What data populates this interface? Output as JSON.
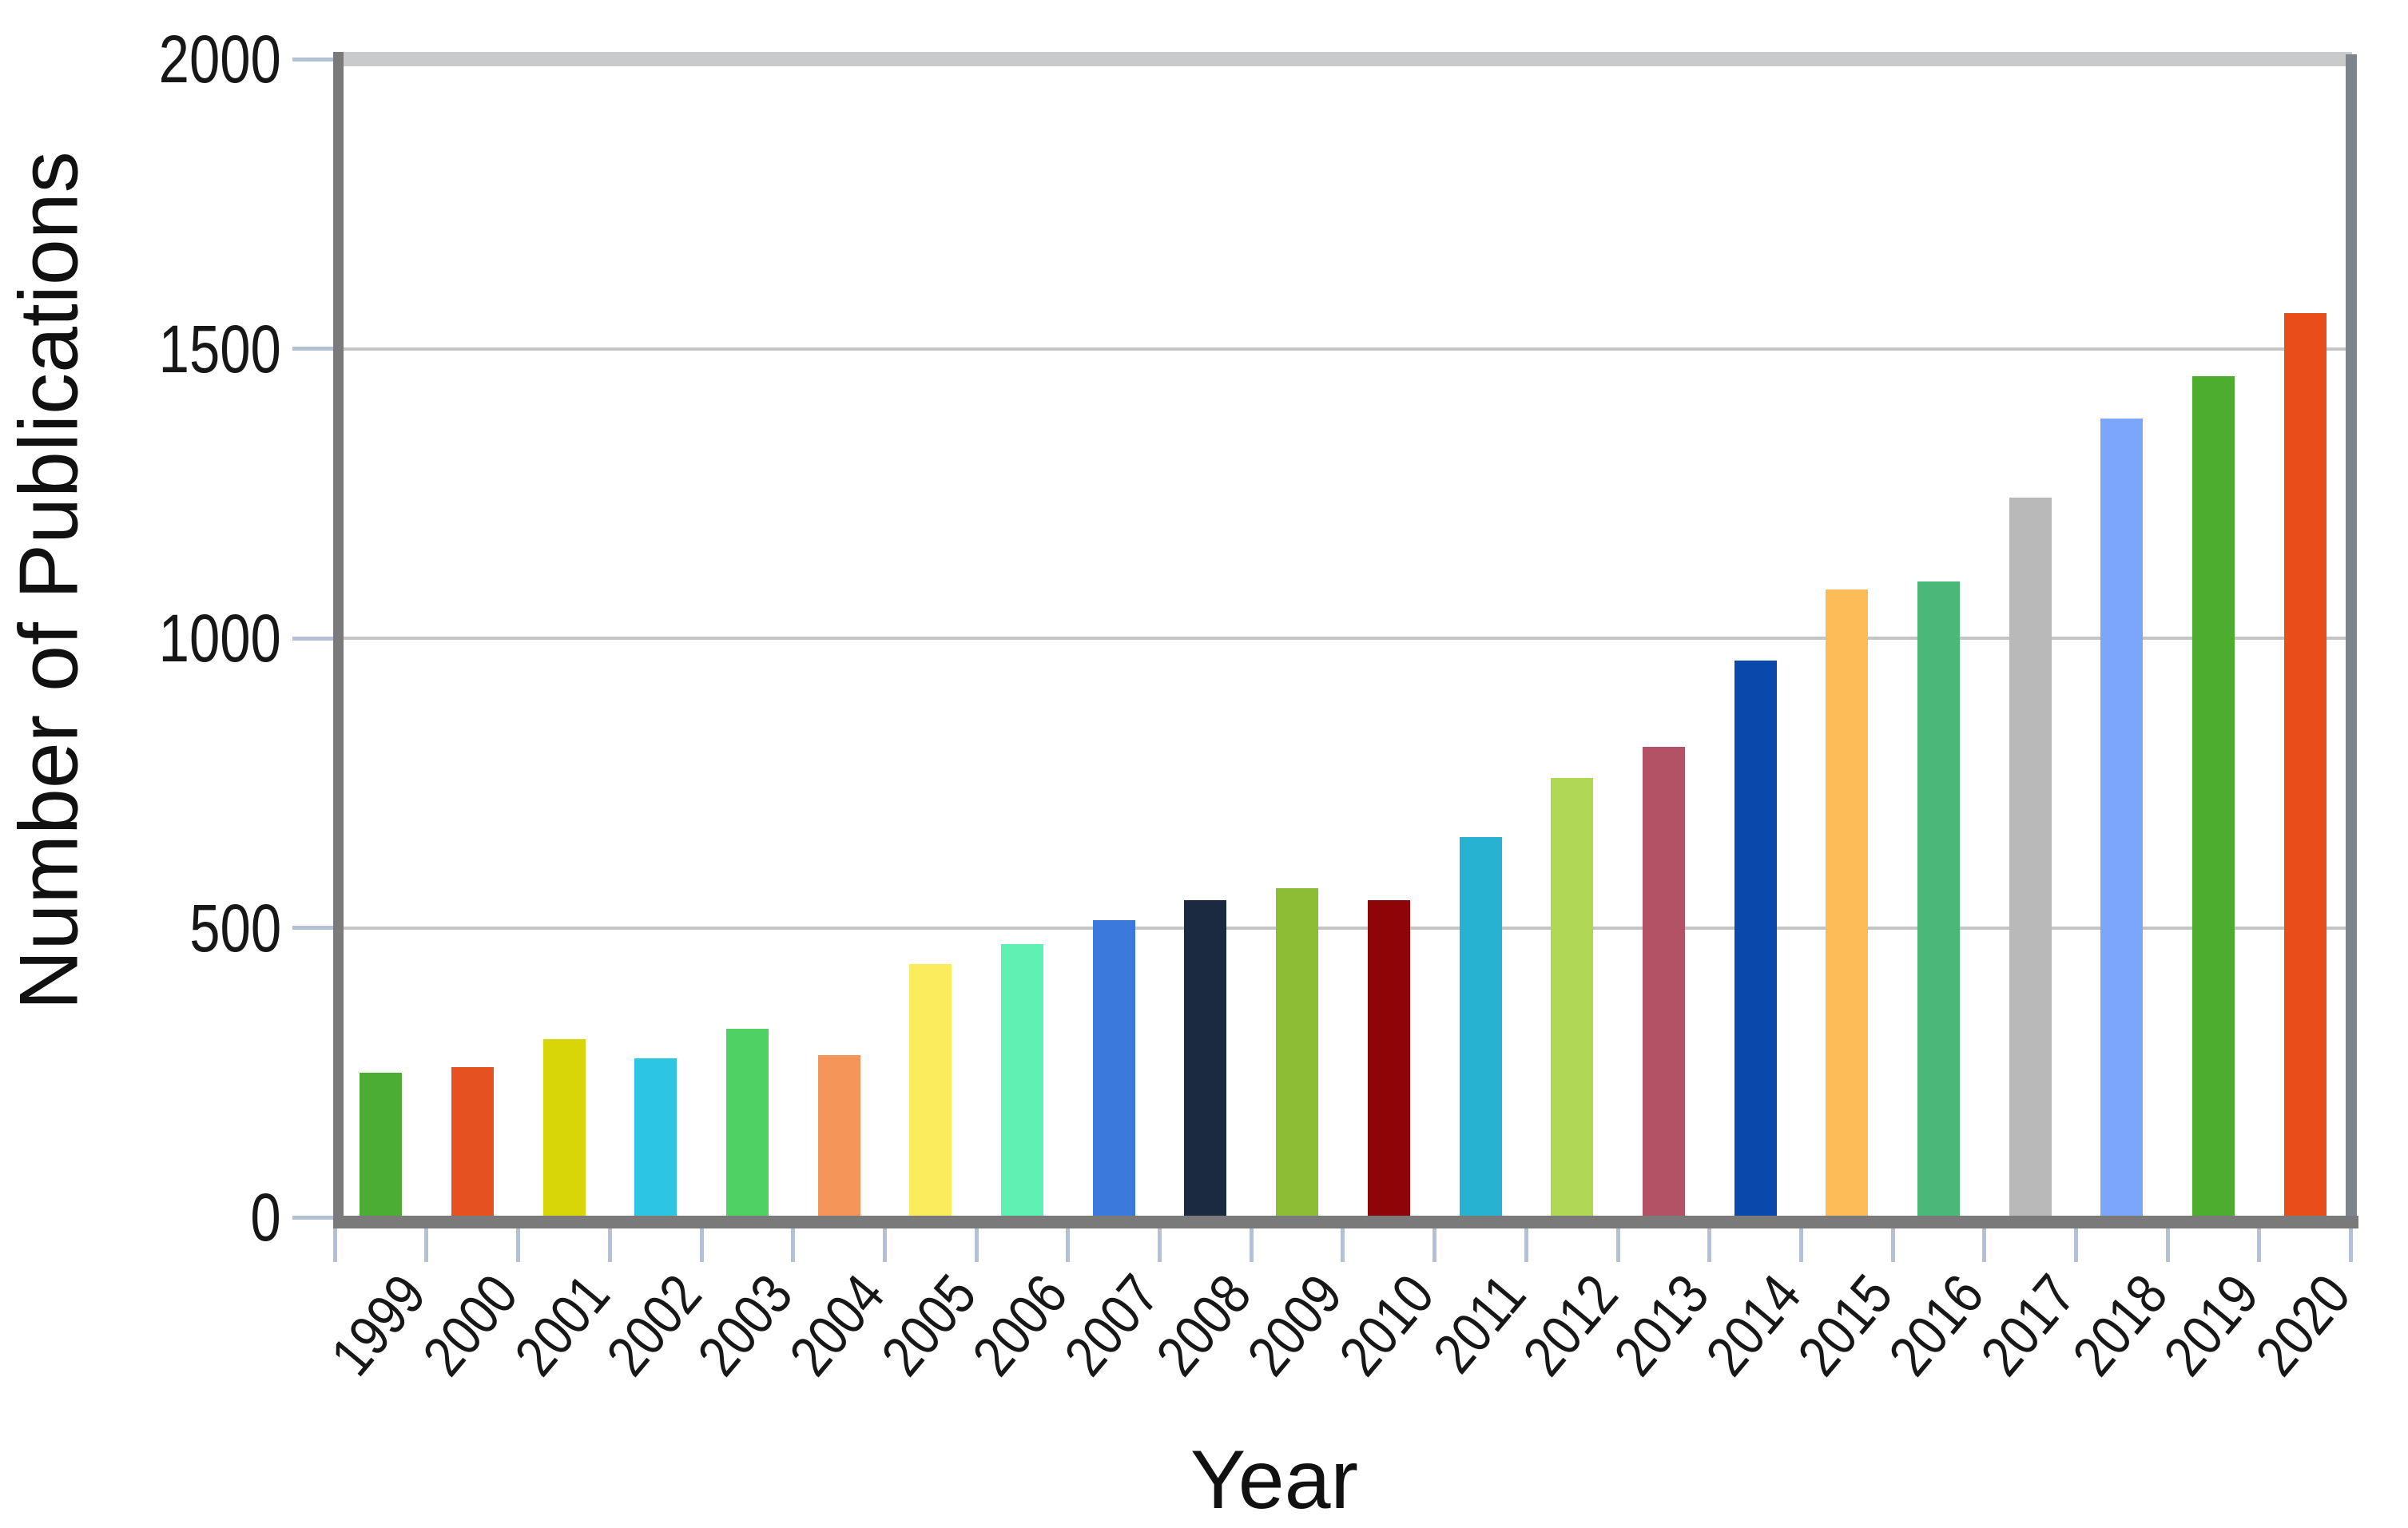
{
  "chart_data": {
    "type": "bar",
    "xlabel": "Year",
    "ylabel": "Number of Publications",
    "categories": [
      "1999",
      "2000",
      "2001",
      "2002",
      "2003",
      "2004",
      "2005",
      "2006",
      "2007",
      "2008",
      "2009",
      "2010",
      "2011",
      "2012",
      "2013",
      "2014",
      "2015",
      "2016",
      "2017",
      "2018",
      "2019",
      "2020"
    ],
    "values": [
      250,
      260,
      308,
      274,
      326,
      280,
      437,
      472,
      513,
      548,
      568,
      548,
      657,
      759,
      813,
      962,
      1084,
      1098,
      1243,
      1379,
      1453,
      1561
    ],
    "bar_colors": [
      "#4bad33",
      "#e55120",
      "#d8d509",
      "#2cc5e2",
      "#4fd163",
      "#f69559",
      "#fbec5d",
      "#5ff0b4",
      "#3c79dc",
      "#1b2a40",
      "#8cbe35",
      "#8e0407",
      "#27b2d2",
      "#b1d854",
      "#b25264",
      "#0b48ab",
      "#fcbd59",
      "#4cb878",
      "#b9b9ba",
      "#7ba6fa",
      "#4cad2f",
      "#e94e1a"
    ],
    "ylim": [
      0,
      2000
    ],
    "yticks": [
      0,
      500,
      1000,
      1500,
      2000
    ],
    "grid": "horizontal",
    "legend": "none",
    "accent_colors": {
      "axis_dark_gray": "#7a7a7a",
      "plot_top_border": "#c9cacc",
      "plot_right_border": "#7d848c",
      "gridline_gray": "#c5c5c5",
      "tick_blue_gray": "#b3c0d6"
    }
  }
}
